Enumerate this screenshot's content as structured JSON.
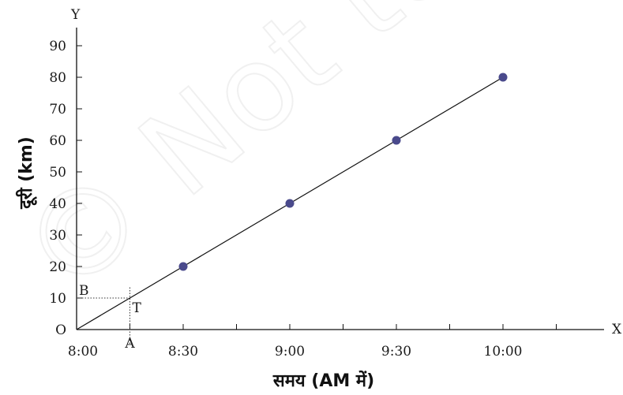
{
  "watermark": "© Not to be republished",
  "chart_data": {
    "type": "line",
    "xlabel": "समय (AM में)",
    "ylabel": "दूरी (km)",
    "x_axis_letter": "X",
    "y_axis_letter": "Y",
    "origin_label": "O",
    "x_tick_labels": [
      "8:00",
      "8:30",
      "9:00",
      "9:30",
      "10:00"
    ],
    "x_tick_values": [
      0,
      30,
      60,
      90,
      120
    ],
    "y_tick_labels": [
      "O",
      "10",
      "20",
      "30",
      "40",
      "50",
      "60",
      "70",
      "80",
      "90"
    ],
    "y_tick_values": [
      0,
      10,
      20,
      30,
      40,
      50,
      60,
      70,
      80,
      90
    ],
    "xlim": [
      0,
      150
    ],
    "ylim": [
      0,
      90
    ],
    "series": [
      {
        "points": [
          {
            "x": "8:30",
            "y": 20
          },
          {
            "x": "9:00",
            "y": 40
          },
          {
            "x": "9:30",
            "y": 60
          },
          {
            "x": "10:00",
            "y": 80
          }
        ],
        "line_from_origin": true,
        "marker_color": "#4a4a8c",
        "line_color": "#111111"
      }
    ],
    "annotation": {
      "x_minutes": 15,
      "y": 10,
      "point_label": "T",
      "x_foot_label": "A",
      "y_foot_label": "B"
    },
    "grid": false,
    "legend": "none"
  }
}
